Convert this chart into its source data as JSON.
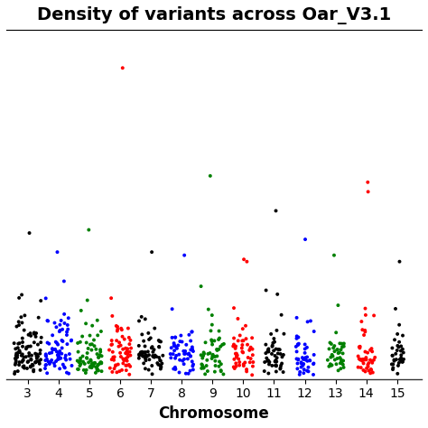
{
  "title": "Density of variants across Oar_V3.1",
  "xlabel": "Chromosome",
  "ylabel": "",
  "chromosomes": [
    3,
    4,
    5,
    6,
    7,
    8,
    9,
    10,
    11,
    12,
    13,
    14,
    15
  ],
  "chr_colors": {
    "3": "#000000",
    "4": "#0000FF",
    "5": "#008000",
    "6": "#FF0000",
    "7": "#000000",
    "8": "#0000FF",
    "9": "#008000",
    "10": "#FF0000",
    "11": "#000000",
    "12": "#0000FF",
    "13": "#008000",
    "14": "#FF0000",
    "15": "#000000"
  },
  "color_cycle": [
    "#000000",
    "#0000FF",
    "#008000",
    "#FF0000"
  ],
  "xlim": [
    2.3,
    15.8
  ],
  "ylim": [
    0,
    550
  ],
  "background_color": "#FFFFFF",
  "seed": 42,
  "n_points_per_chr": 80,
  "title_fontsize": 14,
  "xlabel_fontsize": 12,
  "tick_label_size": 10
}
